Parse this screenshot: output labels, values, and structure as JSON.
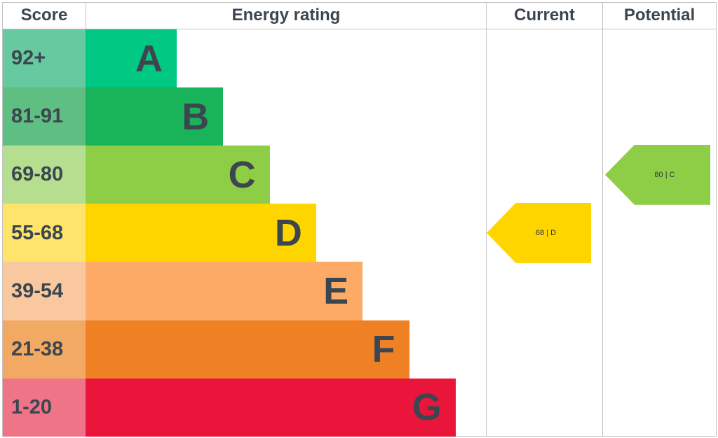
{
  "headers": {
    "score": "Score",
    "energy_rating": "Energy rating",
    "current": "Current",
    "potential": "Potential"
  },
  "chart_data": {
    "type": "bar",
    "categories": [
      "A",
      "B",
      "C",
      "D",
      "E",
      "F",
      "G"
    ],
    "score_ranges": [
      "92+",
      "81-91",
      "69-80",
      "55-68",
      "39-54",
      "21-38",
      "1-20"
    ],
    "band_colors": [
      "#00c781",
      "#19b459",
      "#8dce46",
      "#ffd500",
      "#fcaa65",
      "#ef8023",
      "#e9153b"
    ],
    "score_colors": [
      "#66c9a0",
      "#5fbe82",
      "#b5df8f",
      "#fee46b",
      "#f9c89f",
      "#f2a963",
      "#ef7487"
    ],
    "current": {
      "score": 68,
      "band": "D",
      "label": "68 | D",
      "color": "#ffd500"
    },
    "potential": {
      "score": 80,
      "band": "C",
      "label": "80 | C",
      "color": "#8dce46"
    }
  }
}
